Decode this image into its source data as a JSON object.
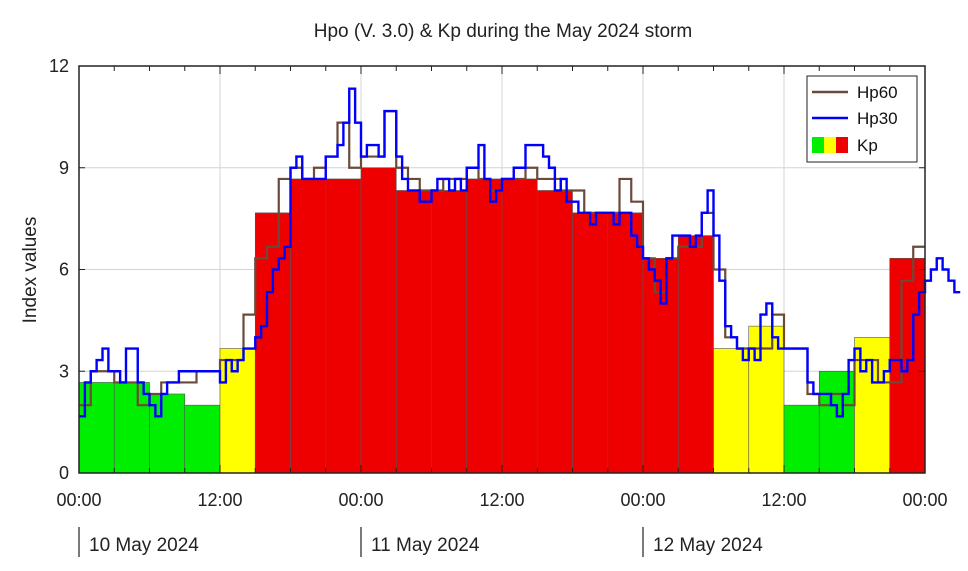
{
  "chart_data": {
    "type": "bar",
    "title": "Hpo (V. 3.0) & Kp during the May 2024 storm",
    "xlabel": "",
    "ylabel": "Index values",
    "xlim": [
      0,
      72
    ],
    "ylim": [
      0,
      12
    ],
    "x_tick_values": [
      0,
      12,
      24,
      36,
      48,
      60,
      72
    ],
    "x_tick_labels": [
      "00:00",
      "12:00",
      "00:00",
      "12:00",
      "00:00",
      "12:00",
      "00:00"
    ],
    "y_ticks": [
      0,
      3,
      6,
      9,
      12
    ],
    "date_labels": [
      {
        "hour": 0,
        "label": "10 May 2024"
      },
      {
        "hour": 24,
        "label": "11 May 2024"
      },
      {
        "hour": 48,
        "label": "12 May 2024"
      }
    ],
    "grid": true,
    "legend_position": "top-right",
    "legend": [
      "Hp60",
      "Hp30",
      "Kp"
    ],
    "series": [
      {
        "name": "Kp",
        "kind": "bars_3h",
        "bin_start_hours": [
          0,
          3,
          6,
          9,
          12,
          15,
          18,
          21,
          24,
          27,
          30,
          33,
          36,
          39,
          42,
          45,
          48,
          51,
          54,
          57,
          60,
          63,
          66,
          69
        ],
        "values": [
          2.67,
          2.67,
          2.33,
          2.0,
          3.67,
          7.67,
          8.67,
          8.67,
          9.0,
          8.33,
          8.33,
          8.67,
          8.67,
          8.33,
          7.67,
          7.67,
          6.33,
          7.0,
          3.67,
          4.33,
          2.0,
          3.0,
          4.0,
          6.33
        ],
        "colors": [
          "#00ee00",
          "#00ee00",
          "#00ee00",
          "#00ee00",
          "#ffff00",
          "#ee0000",
          "#ee0000",
          "#ee0000",
          "#ee0000",
          "#ee0000",
          "#ee0000",
          "#ee0000",
          "#ee0000",
          "#ee0000",
          "#ee0000",
          "#ee0000",
          "#ee0000",
          "#ee0000",
          "#ffff00",
          "#ffff00",
          "#00ee00",
          "#00ee00",
          "#ffff00",
          "#ee0000"
        ]
      },
      {
        "name": "Hp60",
        "kind": "step_1h",
        "color": "#6b4a3a",
        "values": [
          2.0,
          3.0,
          3.0,
          2.67,
          2.67,
          2.0,
          2.33,
          2.67,
          2.67,
          2.67,
          3.0,
          3.0,
          3.33,
          3.33,
          4.67,
          6.33,
          6.67,
          8.67,
          9.0,
          8.67,
          9.0,
          9.33,
          10.33,
          9.0,
          9.33,
          9.33,
          10.67,
          9.0,
          8.67,
          8.33,
          8.33,
          8.67,
          8.67,
          9.0,
          8.67,
          8.33,
          8.67,
          8.67,
          9.0,
          8.67,
          8.67,
          8.33,
          8.33,
          7.67,
          7.67,
          7.67,
          8.67,
          8.0,
          6.33,
          5.33,
          6.33,
          6.67,
          6.67,
          7.67,
          6.0,
          4.0,
          3.67,
          3.67,
          3.67,
          4.67,
          3.67,
          3.67,
          2.33,
          2.0,
          2.33,
          2.0,
          3.33,
          3.33,
          2.67,
          2.67,
          5.67,
          6.67
        ]
      },
      {
        "name": "Hp30",
        "kind": "step_30m",
        "color": "#0000ff",
        "values": [
          1.67,
          2.67,
          3.0,
          3.33,
          3.67,
          3.0,
          3.0,
          2.67,
          3.67,
          3.67,
          2.67,
          2.33,
          2.0,
          1.67,
          2.33,
          2.67,
          2.67,
          3.0,
          3.0,
          3.0,
          3.0,
          3.0,
          3.0,
          3.0,
          2.67,
          3.33,
          3.0,
          3.33,
          3.67,
          3.67,
          4.0,
          4.33,
          5.33,
          6.0,
          6.33,
          6.67,
          9.0,
          9.33,
          8.67,
          8.67,
          8.67,
          8.67,
          9.33,
          9.33,
          9.67,
          10.33,
          11.33,
          10.33,
          9.33,
          9.67,
          9.67,
          9.33,
          10.67,
          10.67,
          9.33,
          8.67,
          8.33,
          8.33,
          8.0,
          8.0,
          8.33,
          8.67,
          8.67,
          8.33,
          8.67,
          8.33,
          9.0,
          9.0,
          9.67,
          8.67,
          8.0,
          8.33,
          8.67,
          8.67,
          9.0,
          9.0,
          9.67,
          9.67,
          9.67,
          9.33,
          9.0,
          8.33,
          8.67,
          8.0,
          8.0,
          7.67,
          7.67,
          7.33,
          7.67,
          7.67,
          7.67,
          7.33,
          7.67,
          7.67,
          7.0,
          6.67,
          6.33,
          6.0,
          5.67,
          5.0,
          6.33,
          7.0,
          7.0,
          7.0,
          6.67,
          7.0,
          7.67,
          8.33,
          7.0,
          5.67,
          4.33,
          4.0,
          3.67,
          3.33,
          3.67,
          3.33,
          4.67,
          5.0,
          4.0,
          3.67,
          3.67,
          3.67,
          3.67,
          3.67,
          2.67,
          2.33,
          2.33,
          2.33,
          2.0,
          1.67,
          2.33,
          3.33,
          3.67,
          3.0,
          3.33,
          2.67,
          2.67,
          3.0,
          3.33,
          3.33,
          3.0,
          3.33,
          4.67,
          5.33,
          5.67,
          6.0,
          6.33,
          6.0,
          5.67,
          5.33
        ]
      }
    ]
  }
}
